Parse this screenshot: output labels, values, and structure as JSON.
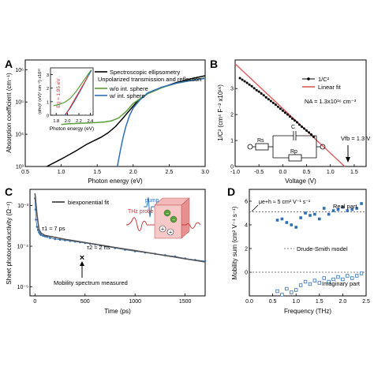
{
  "panels": {
    "A": {
      "letter": "A",
      "ylabel": "Absorption coefficient (cm⁻¹)",
      "xlabel": "Photon energy (eV)",
      "xticks": [
        "0.5",
        "1.0",
        "1.5",
        "2.0",
        "2.5",
        "3.0"
      ],
      "yticks": [
        "10³",
        "10⁴",
        "10⁵",
        "10⁶"
      ],
      "legend": {
        "ellipsometry": "Spectroscopic ellipsometry",
        "header": "Unpolarized transmission and reflection",
        "wo": "w/o int. sphere",
        "w": "w/ int. sphere"
      },
      "inset": {
        "ylabel": "(αhν)² (eV)² cm⁻²) x10¹²",
        "xlabel": "Photon energy (eV)",
        "xticks": [
          "1.8",
          "2.0",
          "2.2",
          "2.4"
        ],
        "yticks": [
          "0",
          "1",
          "2",
          "3"
        ],
        "annotation": "Eg ≈ 1.95 eV"
      }
    },
    "B": {
      "letter": "B",
      "ylabel": "1/C² (cm⁴ F⁻² x10¹⁶)",
      "xlabel": "Voltage (V)",
      "xticks": [
        "-1.0",
        "-0.5",
        "0.0",
        "0.5",
        "1.0",
        "1.5"
      ],
      "yticks": [
        "0",
        "1",
        "2",
        "3"
      ],
      "legend": {
        "series1": "1/C²",
        "series2": "Linear fit"
      },
      "na": "NA = 1.3x10¹⁶ cm⁻³",
      "vfb": "Vfb = 1.3 V",
      "circuit": {
        "rs": "Rs",
        "c": "C",
        "rp": "Rp"
      }
    },
    "C": {
      "letter": "C",
      "ylabel": "Sheet photoconductivity (Ω⁻¹)",
      "xlabel": "Time (ps)",
      "xticks": [
        "0",
        "500",
        "1000",
        "1500"
      ],
      "yticks": [
        "10⁻⁵",
        "10⁻⁴",
        "10⁻³"
      ],
      "legend": "biexponential fit",
      "tau1": "τ1 ≈ 7 ps",
      "tau2": "τ2 ≈ 2 ns",
      "mobility_note": "Mobility spectrum measured",
      "pump": "pump",
      "probe": "THz probe"
    },
    "D": {
      "letter": "D",
      "ylabel": "Mobility sum (cm² V⁻¹ s⁻¹)",
      "xlabel": "Frequency (THz)",
      "xticks": [
        "0.0",
        "0.5",
        "1.0",
        "1.5",
        "2.0",
        "2.5"
      ],
      "yticks": [
        "0",
        "2",
        "4",
        "6"
      ],
      "mu_label": "μe+h ≈ 5 cm² V⁻¹ s⁻¹",
      "real": "Real part",
      "model": "Drude-Smith model",
      "imag": "Imaginary part"
    }
  },
  "colors": {
    "green": "#5a9e3a",
    "blue": "#2f6fb5",
    "red": "#e05a5a",
    "black": "#000000",
    "grey": "#666666"
  },
  "chart_data": [
    {
      "panel": "A",
      "type": "line",
      "ylog": true,
      "xlim": [
        0.5,
        3.0
      ],
      "ylim": [
        1000,
        2000000
      ],
      "series": [
        {
          "name": "Spectroscopic ellipsometry",
          "x": [
            0.8,
            1.0,
            1.2,
            1.35,
            1.45,
            1.55,
            1.65,
            1.75,
            1.85,
            1.95,
            2.05,
            2.2,
            2.4,
            2.6,
            2.8,
            3.0
          ],
          "y": [
            1000,
            1700,
            3000,
            4800,
            6200,
            8000,
            11000,
            17000,
            30000,
            55000,
            100000,
            180000,
            280000,
            400000,
            520000,
            650000
          ]
        },
        {
          "name": "w/o int. sphere",
          "x": [
            1.0,
            1.1,
            1.2,
            1.3,
            1.4,
            1.5,
            1.6,
            1.7,
            1.8,
            1.9,
            2.0,
            2.2,
            2.4,
            2.6,
            2.8,
            3.0
          ],
          "y": [
            20000,
            21000,
            21500,
            22000,
            22500,
            23000,
            24000,
            26000,
            32000,
            50000,
            90000,
            180000,
            280000,
            380000,
            470000,
            560000
          ]
        },
        {
          "name": "w/ int. sphere",
          "x": [
            1.78,
            1.82,
            1.86,
            1.9,
            1.95,
            2.0,
            2.1,
            2.2,
            2.4,
            2.6,
            2.8,
            3.0
          ],
          "y": [
            1000,
            3000,
            8000,
            18000,
            38000,
            65000,
            120000,
            190000,
            290000,
            380000,
            460000,
            540000
          ]
        }
      ]
    },
    {
      "panel": "A-inset",
      "type": "line",
      "xlim": [
        1.7,
        2.45
      ],
      "ylim": [
        0,
        3.5
      ],
      "series": [
        {
          "name": "w/o int. sphere",
          "x": [
            1.75,
            1.85,
            1.95,
            2.05,
            2.15,
            2.25,
            2.35,
            2.42
          ],
          "y": [
            0.7,
            0.8,
            0.95,
            1.25,
            1.75,
            2.35,
            2.95,
            3.35
          ]
        },
        {
          "name": "w/ int. sphere",
          "x": [
            1.95,
            2.05,
            2.15,
            2.25,
            2.35,
            2.42
          ],
          "y": [
            0.0,
            0.55,
            1.25,
            2.0,
            2.8,
            3.3
          ]
        }
      ]
    },
    {
      "panel": "B",
      "type": "scatter",
      "xlim": [
        -1.0,
        1.75
      ],
      "ylim": [
        0,
        4.1
      ],
      "series": [
        {
          "name": "1/C²",
          "x": [
            -0.9,
            -0.85,
            -0.8,
            -0.75,
            -0.7,
            -0.65,
            -0.6,
            -0.55,
            -0.5,
            -0.45,
            -0.4,
            -0.35,
            -0.3,
            -0.25,
            -0.2,
            -0.15,
            -0.1,
            -0.05,
            0.0,
            0.05,
            0.1,
            0.15,
            0.2,
            0.25,
            0.3,
            0.35,
            0.4,
            0.45,
            0.5,
            0.55,
            0.6,
            0.65
          ],
          "y": [
            3.4,
            3.34,
            3.28,
            3.22,
            3.15,
            3.09,
            3.01,
            2.94,
            2.88,
            2.81,
            2.74,
            2.66,
            2.59,
            2.52,
            2.45,
            2.38,
            2.3,
            2.22,
            2.15,
            2.07,
            2.0,
            1.92,
            1.84,
            1.77,
            1.7,
            1.61,
            1.53,
            1.46,
            1.38,
            1.31,
            1.23,
            1.14
          ]
        },
        {
          "name": "Linear fit",
          "x": [
            -1.0,
            1.3
          ],
          "y": [
            3.95,
            0.0
          ]
        }
      ]
    },
    {
      "panel": "C",
      "type": "line",
      "ylog": true,
      "xlim": [
        -50,
        1700
      ],
      "ylim": [
        6e-06,
        0.0025
      ],
      "series": [
        {
          "name": "data",
          "x": [
            0,
            5,
            10,
            20,
            30,
            40,
            50,
            60,
            80,
            100,
            120,
            150,
            200,
            250,
            300,
            350,
            400,
            450,
            500,
            550,
            600,
            650,
            700,
            800,
            900,
            1000,
            1100,
            1200,
            1300,
            1400,
            1500,
            1600,
            1700
          ],
          "y": [
            0.0015,
            0.0008,
            0.00045,
            0.0003,
            0.00025,
            0.00022,
            0.0002,
            0.00019,
            0.00018,
            0.000175,
            0.00017,
            0.00016,
            0.00015,
            0.000145,
            0.00014,
            0.000135,
            0.00013,
            0.000125,
            0.00012,
            0.000115,
            0.00011,
            0.000105,
            0.0001,
            9e-05,
            8.2e-05,
            7.5e-05,
            7e-05,
            6.5e-05,
            6e-05,
            5.6e-05,
            5e-05,
            4.6e-05,
            4.3e-05
          ]
        },
        {
          "name": "biexponential fit",
          "x": [
            0,
            20,
            40,
            60,
            100,
            200,
            300,
            400,
            500,
            600,
            700,
            800,
            900,
            1000,
            1100,
            1200,
            1300,
            1400,
            1500,
            1600,
            1700
          ],
          "y": [
            0.002,
            0.0006,
            0.00026,
            0.00021,
            0.000185,
            0.000165,
            0.000148,
            0.000135,
            0.000123,
            0.000112,
            0.000102,
            9.3e-05,
            8.5e-05,
            7.8e-05,
            7.1e-05,
            6.5e-05,
            5.9e-05,
            5.4e-05,
            4.9e-05,
            4.5e-05,
            4.1e-05
          ]
        }
      ]
    },
    {
      "panel": "D",
      "type": "scatter",
      "xlim": [
        0,
        2.5
      ],
      "ylim": [
        -2,
        7
      ],
      "series": [
        {
          "name": "Real part",
          "x": [
            0.6,
            0.7,
            0.8,
            0.9,
            1.0,
            1.1,
            1.2,
            1.3,
            1.4,
            1.5,
            1.6,
            1.7,
            1.8,
            1.9,
            2.0,
            2.1,
            2.2,
            2.3,
            2.4
          ],
          "y": [
            4.4,
            4.5,
            4.2,
            4.0,
            3.8,
            4.6,
            5.0,
            4.8,
            4.9,
            4.5,
            5.4,
            4.9,
            5.2,
            5.3,
            5.5,
            5.2,
            5.3,
            5.4,
            5.8
          ]
        },
        {
          "name": "Imaginary part",
          "x": [
            0.6,
            0.7,
            0.8,
            0.9,
            1.0,
            1.1,
            1.2,
            1.3,
            1.4,
            1.5,
            1.6,
            1.7,
            1.8,
            1.9,
            2.0,
            2.1,
            2.2,
            2.3,
            2.4
          ],
          "y": [
            -1.6,
            -1.9,
            -1.4,
            -1.7,
            -1.5,
            -1.1,
            -0.8,
            -1.0,
            -0.7,
            -0.9,
            -0.5,
            -0.8,
            -0.6,
            -0.4,
            -0.6,
            -0.3,
            -0.5,
            -0.3,
            -0.1
          ]
        },
        {
          "name": "Drude-Smith model",
          "x": [
            0,
            2.5
          ],
          "y": [
            5.1,
            5.1
          ]
        },
        {
          "name": "Drude-Smith model imag",
          "x": [
            0,
            2.5
          ],
          "y": [
            0,
            0
          ]
        }
      ]
    }
  ]
}
